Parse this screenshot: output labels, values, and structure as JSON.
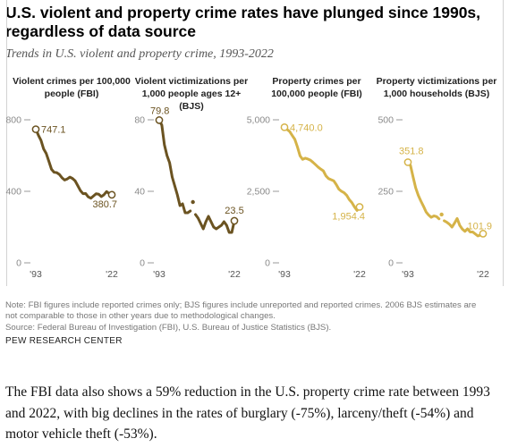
{
  "header": {
    "title": "U.S. violent and property crime rates have plunged since 1990s, regardless of data source",
    "subtitle": "Trends in U.S. violent and property crime, 1993-2022"
  },
  "colors": {
    "violent": "#6b5321",
    "property": "#d5b348",
    "axis": "#999999",
    "divider": "#d2d2d2"
  },
  "chart_data": [
    {
      "type": "line",
      "title": "Violent crimes per 100,000 people (FBI)",
      "ylim": [
        0,
        800
      ],
      "yticks": [
        0,
        400,
        800
      ],
      "ytick_labels": [
        "0",
        "400",
        "800"
      ],
      "xlim": [
        1993,
        2022
      ],
      "xtick_labels": [
        "'93",
        "'22"
      ],
      "color": "#6b5321",
      "x": [
        1993,
        1994,
        1995,
        1996,
        1997,
        1998,
        1999,
        2000,
        2001,
        2002,
        2003,
        2004,
        2005,
        2006,
        2007,
        2008,
        2009,
        2010,
        2011,
        2012,
        2013,
        2014,
        2015,
        2016,
        2017,
        2018,
        2019,
        2020,
        2021,
        2022
      ],
      "y": [
        747.1,
        713.6,
        684.5,
        636.6,
        611.0,
        567.6,
        523.0,
        506.5,
        504.5,
        494.4,
        475.8,
        463.2,
        469.0,
        479.3,
        471.8,
        458.6,
        431.9,
        404.5,
        387.1,
        387.8,
        369.1,
        361.6,
        373.7,
        386.3,
        383.8,
        370.8,
        380.8,
        398.5,
        387.0,
        380.7
      ],
      "start_label": "747.1",
      "end_label": "380.7"
    },
    {
      "type": "line",
      "title": "Violent victimizations per 1,000 people ages 12+ (BJS)",
      "ylim": [
        0,
        80
      ],
      "yticks": [
        0,
        40,
        80
      ],
      "ytick_labels": [
        "0",
        "40",
        "80"
      ],
      "xlim": [
        1993,
        2022
      ],
      "xtick_labels": [
        "'93",
        "'22"
      ],
      "color": "#6b5321",
      "segments": [
        {
          "x": [
            1993,
            1994,
            1995,
            1996,
            1997,
            1998,
            1999,
            2000,
            2001,
            2002,
            2003,
            2004,
            2005
          ],
          "y": [
            79.8,
            77.0,
            66.0,
            60.0,
            56.0,
            48.0,
            43.0,
            38.0,
            32.0,
            33.0,
            28.0,
            28.0,
            29.0
          ]
        },
        {
          "x": [
            2006
          ],
          "y": [
            34.0
          ]
        },
        {
          "x": [
            2007,
            2008,
            2009,
            2010,
            2011,
            2012,
            2013,
            2014,
            2015,
            2016,
            2017,
            2018,
            2019,
            2020,
            2021,
            2022
          ],
          "y": [
            27.0,
            25.0,
            22.0,
            19.0,
            23.0,
            26.0,
            23.0,
            20.0,
            19.0,
            20.0,
            21.0,
            23.0,
            21.0,
            17.0,
            17.0,
            23.5
          ]
        }
      ],
      "start_label": "79.8",
      "end_label": "23.5"
    },
    {
      "type": "line",
      "title": "Property crimes per 100,000 people (FBI)",
      "ylim": [
        0,
        5000
      ],
      "yticks": [
        0,
        2500,
        5000
      ],
      "ytick_labels": [
        "0",
        "2,500",
        "5,000"
      ],
      "xlim": [
        1993,
        2022
      ],
      "xtick_labels": [
        "'93",
        "'22"
      ],
      "color": "#d5b348",
      "x": [
        1993,
        1994,
        1995,
        1996,
        1997,
        1998,
        1999,
        2000,
        2001,
        2002,
        2003,
        2004,
        2005,
        2006,
        2007,
        2008,
        2009,
        2010,
        2011,
        2012,
        2013,
        2014,
        2015,
        2016,
        2017,
        2018,
        2019,
        2020,
        2021,
        2022
      ],
      "y": [
        4740.0,
        4660.2,
        4590.5,
        4451.0,
        4316.3,
        4052.5,
        3743.6,
        3618.3,
        3658.1,
        3630.6,
        3591.2,
        3514.1,
        3431.5,
        3346.6,
        3276.4,
        3214.6,
        3041.3,
        2945.9,
        2905.4,
        2868.0,
        2733.6,
        2574.1,
        2500.5,
        2451.6,
        2362.2,
        2209.8,
        2109.9,
        1958.2,
        1832.3,
        1954.4
      ],
      "start_label": "4,740.0",
      "end_label": "1,954.4"
    },
    {
      "type": "line",
      "title": "Property victimizations per 1,000 households (BJS)",
      "ylim": [
        0,
        500
      ],
      "yticks": [
        0,
        250,
        500
      ],
      "ytick_labels": [
        "0",
        "250",
        "500"
      ],
      "xlim": [
        1993,
        2022
      ],
      "xtick_labels": [
        "'93",
        "'22"
      ],
      "color": "#d5b348",
      "segments": [
        {
          "x": [
            1993,
            1994,
            1995,
            1996,
            1997,
            1998,
            1999,
            2000,
            2001,
            2002,
            2003,
            2004,
            2005
          ],
          "y": [
            351.8,
            340.0,
            300.0,
            262.0,
            236.0,
            216.0,
            198.0,
            178.0,
            167.0,
            159.0,
            164.0,
            162.0,
            154.0
          ]
        },
        {
          "x": [
            2006
          ],
          "y": [
            169.0
          ]
        },
        {
          "x": [
            2007,
            2008,
            2009,
            2010,
            2011,
            2012,
            2013,
            2014,
            2015,
            2016,
            2017,
            2018,
            2019,
            2020,
            2021,
            2022
          ],
          "y": [
            147.0,
            142.0,
            135.0,
            125.0,
            139.0,
            155.0,
            131.0,
            118.0,
            110.0,
            119.0,
            108.0,
            108.0,
            101.0,
            94.0,
            97.0,
            101.9
          ]
        }
      ],
      "start_label": "351.8",
      "end_label": "101.9"
    }
  ],
  "notes": {
    "line1": "Note: FBI figures include reported crimes only; BJS figures include unreported and reported crimes. 2006 BJS estimates are",
    "line2": "not comparable to those in other years due to methodological changes.",
    "source": "Source: Federal Bureau of Investigation (FBI), U.S. Bureau of Justice Statistics (BJS)."
  },
  "credit": "PEW RESEARCH CENTER",
  "body_text": "The FBI data also shows a 59% reduction in the U.S. property crime rate between 1993 and 2022, with big declines in the rates of burglary (-75%), larceny/theft (-54%) and motor vehicle theft (-53%)."
}
